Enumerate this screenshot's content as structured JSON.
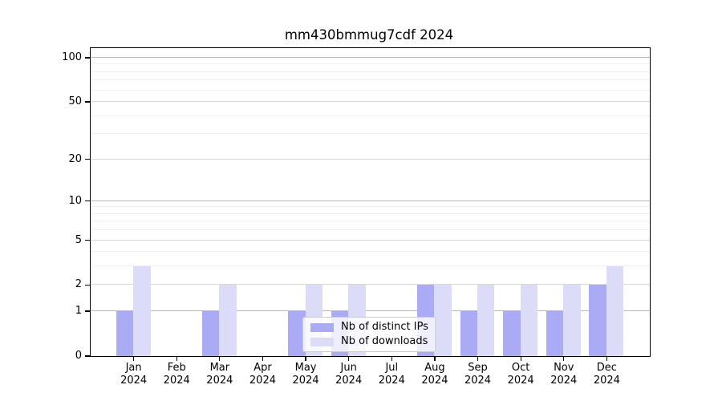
{
  "chart_data": {
    "type": "bar",
    "title": "mm430bmmug7cdf 2024",
    "categories": [
      "Jan 2024",
      "Feb 2024",
      "Mar 2024",
      "Apr 2024",
      "May 2024",
      "Jun 2024",
      "Jul 2024",
      "Aug 2024",
      "Sep 2024",
      "Oct 2024",
      "Nov 2024",
      "Dec 2024"
    ],
    "months": [
      "Jan",
      "Feb",
      "Mar",
      "Apr",
      "May",
      "Jun",
      "Jul",
      "Aug",
      "Sep",
      "Oct",
      "Nov",
      "Dec"
    ],
    "year": "2024",
    "series": [
      {
        "name": "Nb of distinct IPs",
        "color": "#aaaaf5",
        "values": [
          1,
          0,
          1,
          0,
          1,
          1,
          0,
          2,
          1,
          1,
          1,
          2
        ]
      },
      {
        "name": "Nb of downloads",
        "color": "#dcdcf8",
        "values": [
          3,
          0,
          2,
          0,
          2,
          2,
          0,
          2,
          2,
          2,
          2,
          3
        ]
      }
    ],
    "xlabel": "",
    "ylabel": "",
    "y_ticks": [
      0,
      1,
      2,
      5,
      10,
      20,
      50,
      100
    ],
    "y_minor_ticks": [
      3,
      4,
      6,
      7,
      8,
      9,
      30,
      40,
      60,
      70,
      80,
      90
    ],
    "y_scale": "log10(1+x)",
    "ylim": [
      0,
      116
    ],
    "grid": true,
    "legend_position": "inside lower center",
    "colors": {
      "decade_gridline": "#b9b9b9",
      "major_gridline": "#d8d8d8",
      "minor_gridline": "#f0f0f0",
      "axis": "#000000"
    }
  }
}
